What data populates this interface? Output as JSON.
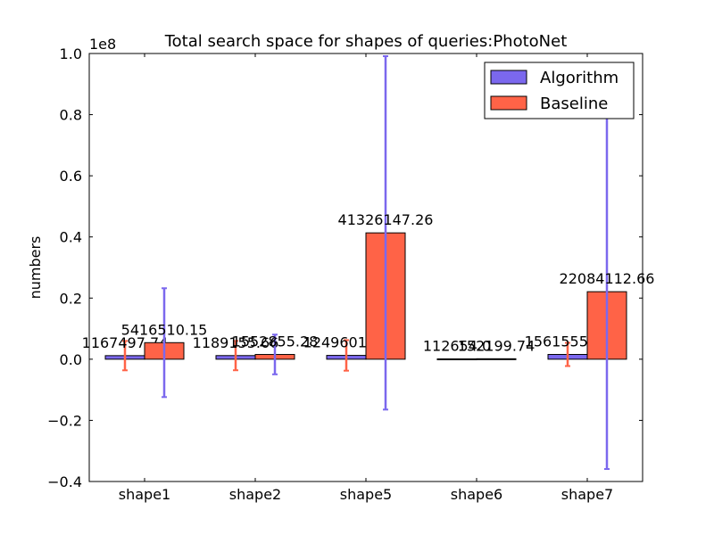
{
  "chart_data": {
    "type": "bar",
    "title": "Total search space for shapes of queries:PhotoNet",
    "xlabel": "",
    "ylabel": "numbers",
    "y_multiplier_label": "1e8",
    "ylim": [
      -0.4,
      1.0
    ],
    "yticks": [
      -0.4,
      -0.2,
      0.0,
      0.2,
      0.4,
      0.6,
      0.8,
      1.0
    ],
    "ytick_labels": [
      "−0.4",
      "−0.2",
      "0.0",
      "0.2",
      "0.4",
      "0.6",
      "0.8",
      "1.0"
    ],
    "categories": [
      "shape1",
      "shape2",
      "shape5",
      "shape6",
      "shape7"
    ],
    "legend_position": "top-right",
    "series": [
      {
        "name": "Algorithm",
        "color": "#7b68ee",
        "values": [
          1167497.74,
          1189155.66,
          1249601.7,
          112654.0,
          1561555.6
        ],
        "labels": [
          "1167497.74",
          "1189155.66",
          "1249601.70",
          "112654.0",
          "1561555.60"
        ],
        "error": [
          0.048,
          0.048,
          0.05,
          0.0,
          0.038
        ],
        "error_color": "#ff6347"
      },
      {
        "name": "Baseline",
        "color": "#ff6347",
        "values": [
          5416510.15,
          1552855.28,
          41326147.26,
          152199.74,
          22084112.66
        ],
        "labels": [
          "5416510.15",
          "1552855.28",
          "41326147.26",
          "152199.74",
          "22084112.66"
        ],
        "error": [
          0.178,
          0.065,
          0.578,
          0.0,
          0.58
        ],
        "error_color": "#7b68ee"
      }
    ]
  }
}
